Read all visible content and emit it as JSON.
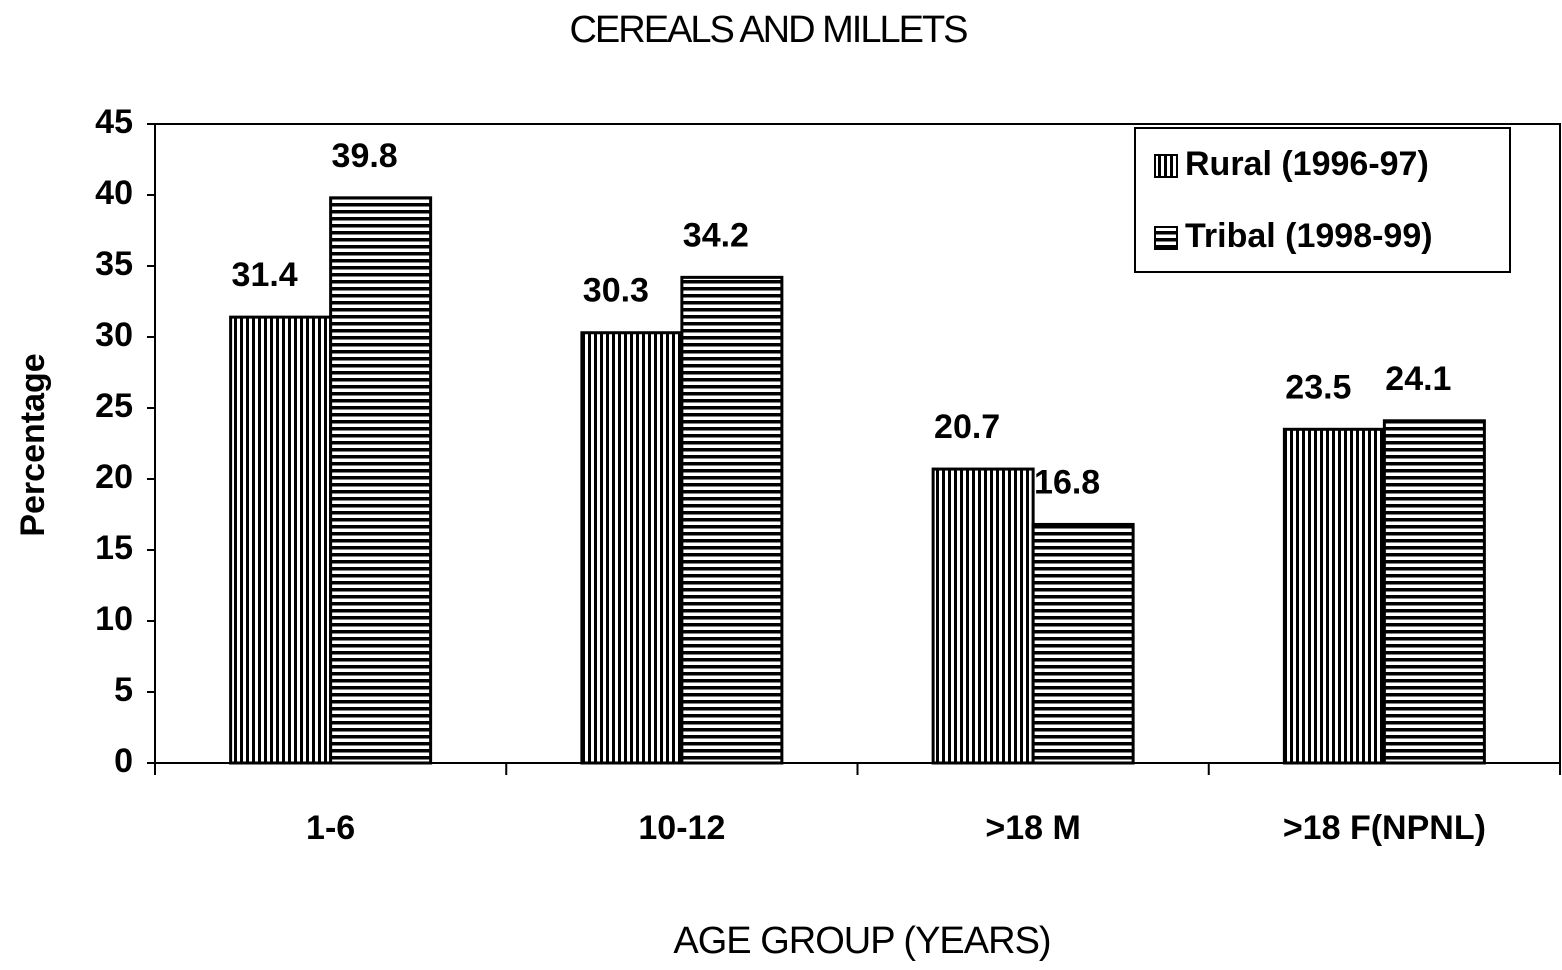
{
  "chart_data": {
    "type": "bar",
    "title": "CEREALS AND MILLETS",
    "x_label": "AGE GROUP (YEARS)",
    "y_label": "Percentage",
    "categories": [
      "1-6",
      "10-12",
      ">18 M",
      ">18 F(NPNL)"
    ],
    "series": [
      {
        "name": "Rural (1996-97)",
        "color": "#000000",
        "pattern": "vertical",
        "values": [
          31.4,
          30.3,
          20.7,
          23.5
        ]
      },
      {
        "name": "Tribal (1998-99)",
        "color": "#000000",
        "pattern": "horizontal",
        "values": [
          39.8,
          34.2,
          16.8,
          24.1
        ]
      }
    ],
    "ylim": [
      0,
      45
    ],
    "yticks": [
      0,
      5,
      10,
      15,
      20,
      25,
      30,
      35,
      40,
      45
    ],
    "legend": "upper right"
  }
}
